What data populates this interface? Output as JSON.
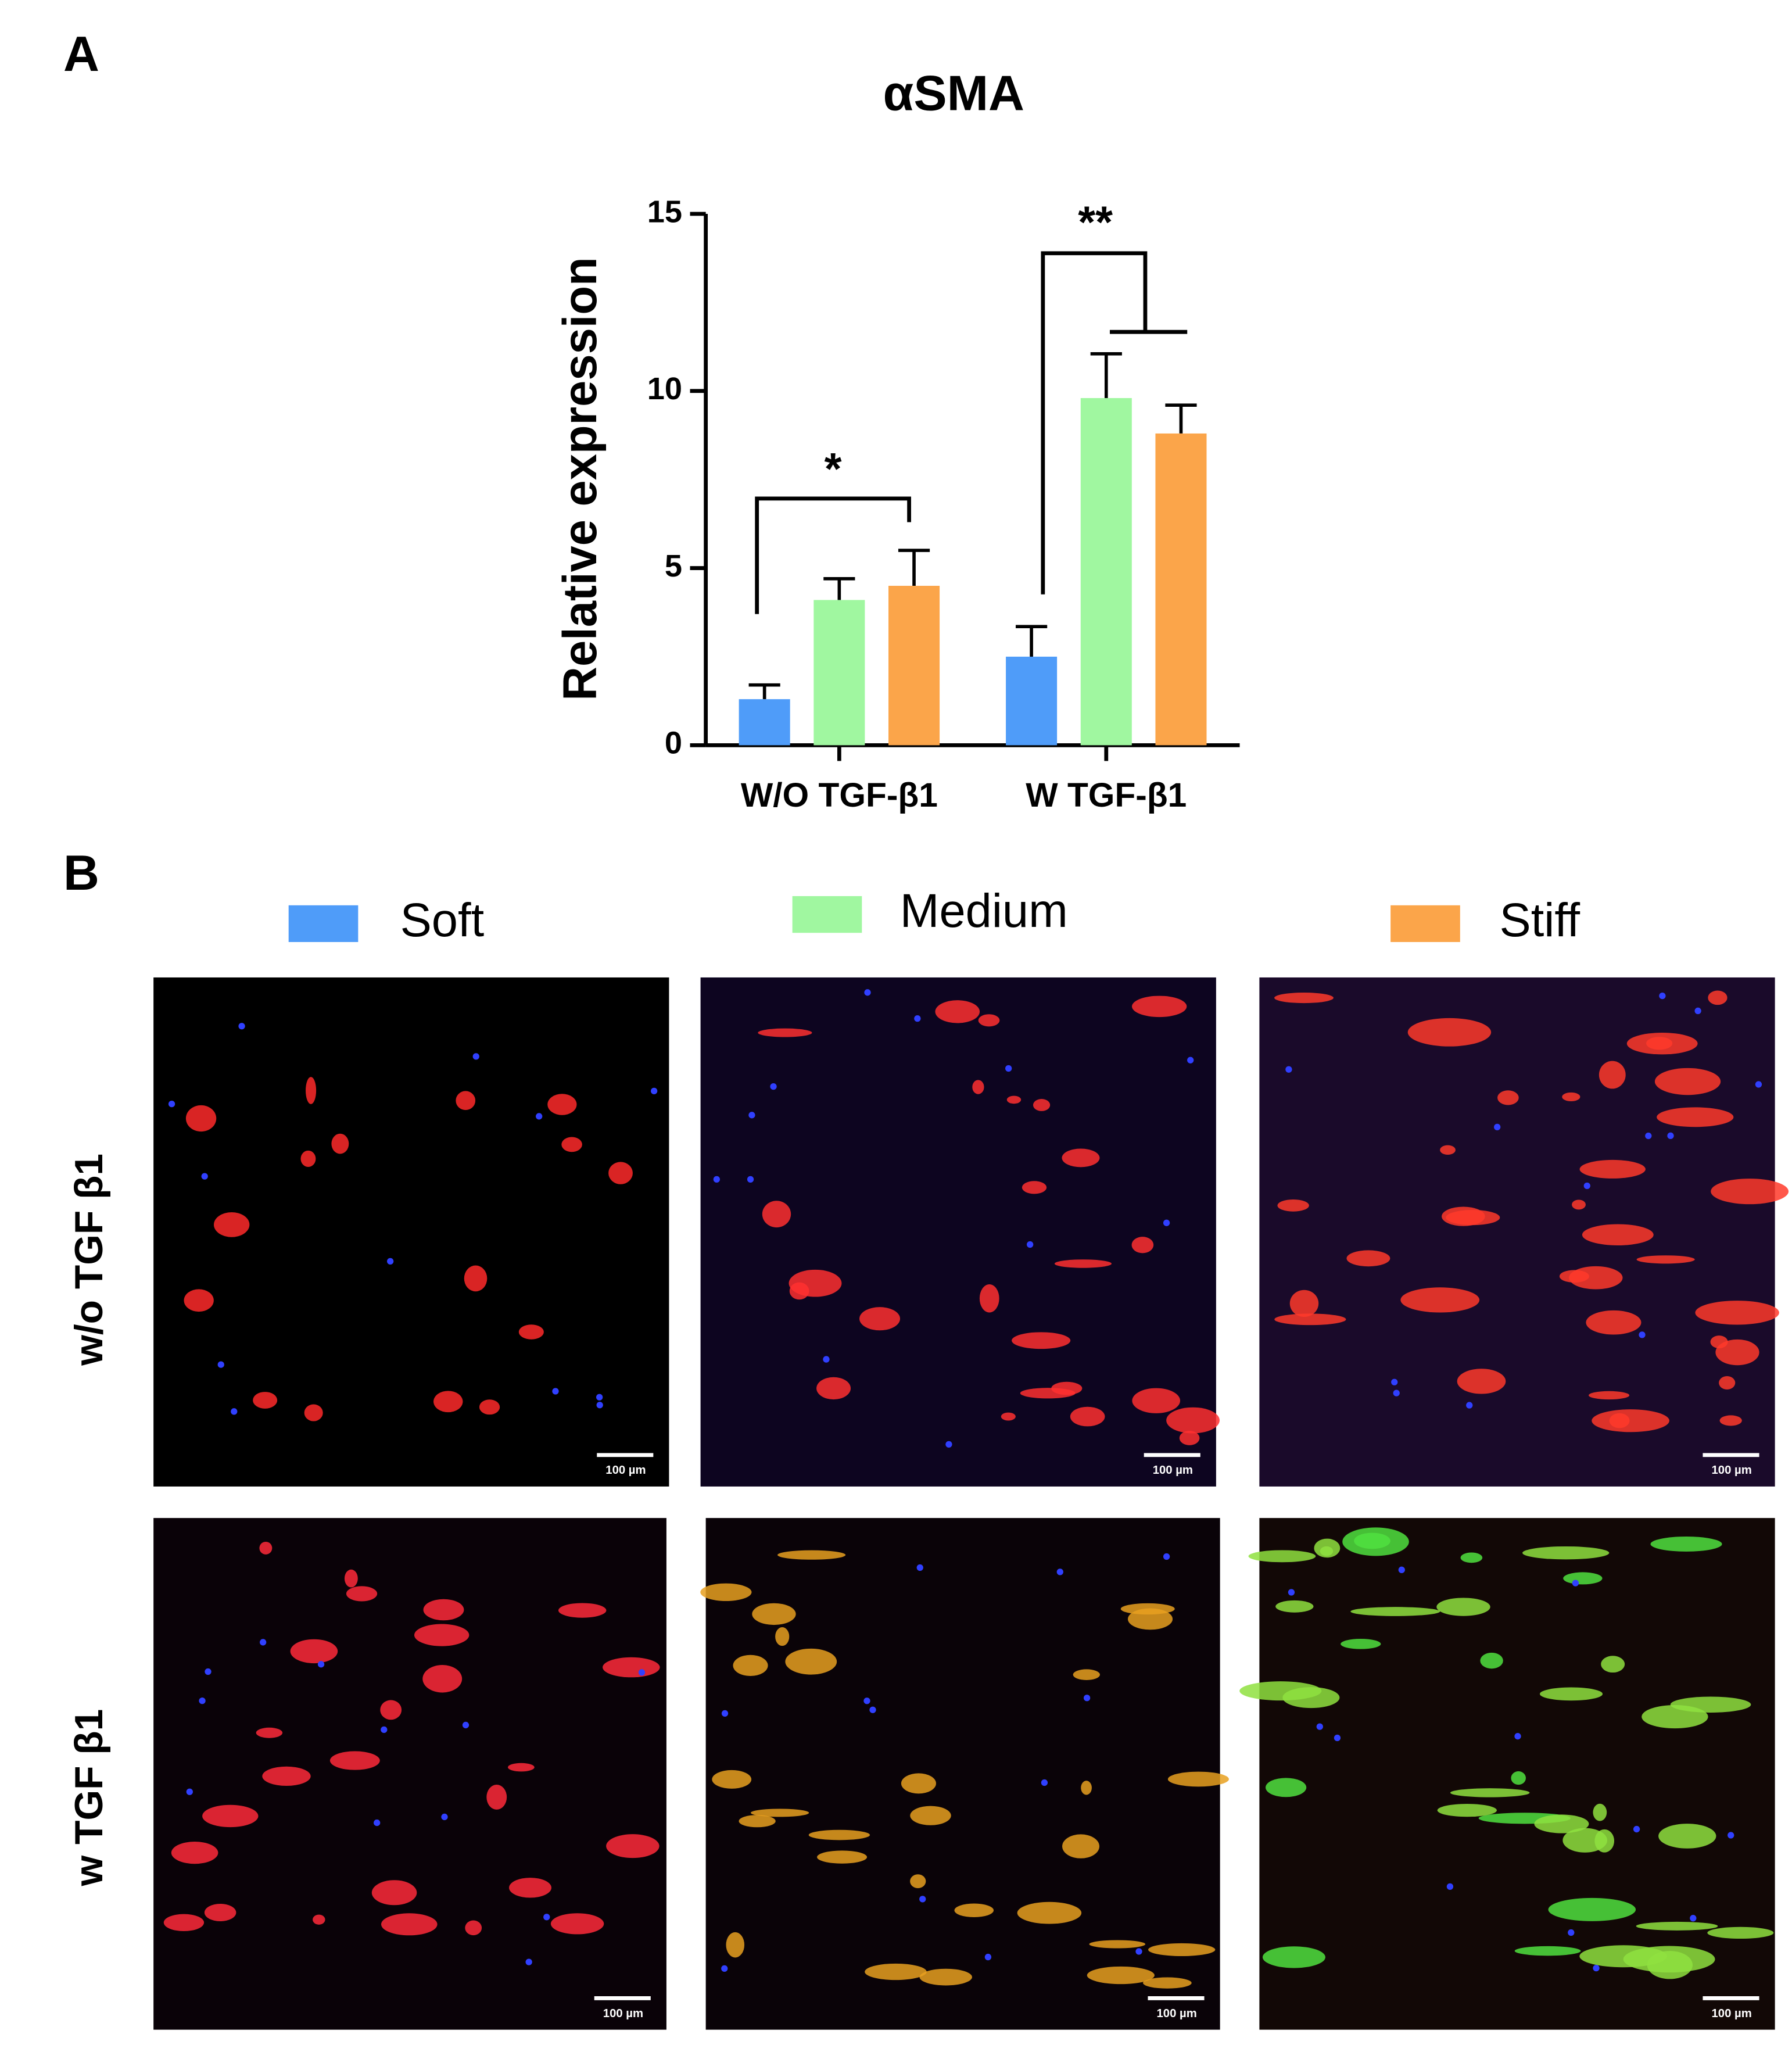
{
  "panel_labels": [
    "A",
    "B"
  ],
  "chart_data": {
    "type": "bar",
    "title": "αSMA",
    "y_label": "Relative expression",
    "categories": [
      "W/O TGF-β1",
      "W TGF-β1"
    ],
    "series": [
      {
        "name": "Soft",
        "color": "#4f9cf9",
        "values": [
          1.3,
          2.5
        ],
        "errors": [
          0.4,
          0.85
        ]
      },
      {
        "name": "Medium",
        "color": "#a0f7a0",
        "values": [
          4.1,
          9.8
        ],
        "errors": [
          0.6,
          1.25
        ]
      },
      {
        "name": "Stiff",
        "color": "#fba54a",
        "values": [
          4.5,
          8.8
        ],
        "errors": [
          1.0,
          0.8
        ]
      }
    ],
    "ylim": [
      0,
      15
    ],
    "yticks": [
      0,
      5,
      10,
      15
    ],
    "annotations": [
      "*",
      "**"
    ]
  },
  "row_labels": [
    "w/o TGF β1",
    "w TGF β1"
  ],
  "scale_bars": [
    "100 µm",
    "100 µm",
    "100 µm",
    "100 µm",
    "100 µm",
    "100 µm"
  ]
}
